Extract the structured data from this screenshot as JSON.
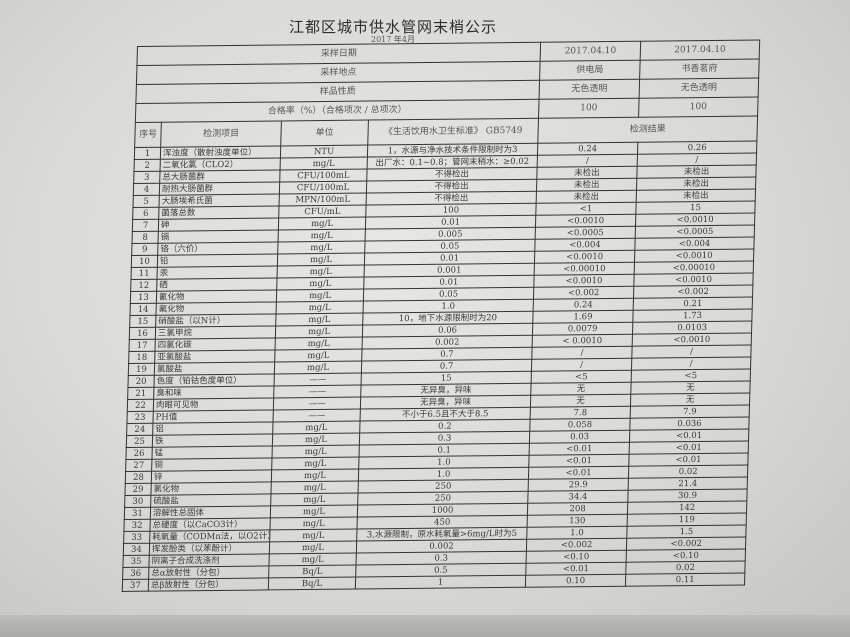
{
  "title": "江都区城市供水管网末梢公示",
  "subtitle": "2017 年4月",
  "summary": [
    {
      "label": "采样日期",
      "v1": "2017.04.10",
      "v2": "2017.04.10"
    },
    {
      "label": "采样地点",
      "v1": "供电局",
      "v2": "书香茗府"
    },
    {
      "label": "样品性质",
      "v1": "无色透明",
      "v2": "无色透明"
    },
    {
      "label": "合格率（%）（合格项次 / 总项次）",
      "v1": "100",
      "v2": "100"
    }
  ],
  "headers": {
    "seq": "序号",
    "item": "检测项目",
    "unit": "单位",
    "standard": "《生活饮用水卫生标准》 GB5749",
    "results": "检测结果"
  },
  "rows": [
    [
      "1",
      "浑浊度（散射浊度单位）",
      "NTU",
      "1，水源与净水技术条件限制时为3",
      "0.24",
      "0.26"
    ],
    [
      "2",
      "二氧化氯（CLO2）",
      "mg/L",
      "出厂水：0.1~0.8；管网末稍水：≥0.02",
      "/",
      "/"
    ],
    [
      "3",
      "总大肠菌群",
      "CFU/100mL",
      "不得检出",
      "未检出",
      "未检出"
    ],
    [
      "4",
      "耐热大肠菌群",
      "CFU/100mL",
      "不得检出",
      "未检出",
      "未检出"
    ],
    [
      "5",
      "大肠埃希氏菌",
      "MPN/100mL",
      "不得检出",
      "未检出",
      "未检出"
    ],
    [
      "6",
      "菌落总数",
      "CFU/mL",
      "100",
      "<1",
      "15"
    ],
    [
      "7",
      "砷",
      "mg/L",
      "0.01",
      "<0.0010",
      "<0.0010"
    ],
    [
      "8",
      "镉",
      "mg/L",
      "0.005",
      "<0.0005",
      "<0.0005"
    ],
    [
      "9",
      "铬（六价）",
      "mg/L",
      "0.05",
      "<0.004",
      "<0.004"
    ],
    [
      "10",
      "铅",
      "mg/L",
      "0.01",
      "<0.0010",
      "<0.0010"
    ],
    [
      "11",
      "汞",
      "mg/L",
      "0.001",
      "<0.00010",
      "<0.00010"
    ],
    [
      "12",
      "硒",
      "mg/L",
      "0.01",
      "<0.0010",
      "<0.0010"
    ],
    [
      "13",
      "氰化物",
      "mg/L",
      "0.05",
      "<0.002",
      "<0.002"
    ],
    [
      "14",
      "氟化物",
      "mg/L",
      "1.0",
      "0.24",
      "0.21"
    ],
    [
      "15",
      "硝酸盐（以N计）",
      "mg/L",
      "10，地下水源限制时为20",
      "1.69",
      "1.73"
    ],
    [
      "16",
      "三氯甲烷",
      "mg/L",
      "0.06",
      "0.0079",
      "0.0103"
    ],
    [
      "17",
      "四氯化碳",
      "mg/L",
      "0.002",
      "< 0.0010",
      "<0.0010"
    ],
    [
      "18",
      "亚氯酸盐",
      "mg/L",
      "0.7",
      "/",
      "/"
    ],
    [
      "19",
      "氯酸盐",
      "mg/L",
      "0.7",
      "/",
      "/"
    ],
    [
      "20",
      "色度（铂钴色度单位）",
      "——",
      "15",
      "<5",
      "<5"
    ],
    [
      "21",
      "臭和味",
      "——",
      "无异臭，异味",
      "无",
      "无"
    ],
    [
      "22",
      "肉眼可见物",
      "——",
      "无异臭，异味",
      "无",
      "无"
    ],
    [
      "23",
      "PH值",
      "——",
      "不小于6.5且不大于8.5",
      "7.8",
      "7.9"
    ],
    [
      "24",
      "铝",
      "mg/L",
      "0.2",
      "0.058",
      "0.036"
    ],
    [
      "25",
      "铁",
      "mg/L",
      "0.3",
      "0.03",
      "<0.01"
    ],
    [
      "26",
      "锰",
      "mg/L",
      "0.1",
      "<0.01",
      "<0.01"
    ],
    [
      "27",
      "铜",
      "mg/L",
      "1.0",
      "<0.01",
      "<0.01"
    ],
    [
      "28",
      "锌",
      "mg/L",
      "1.0",
      "<0.01",
      "0.02"
    ],
    [
      "29",
      "氯化物",
      "mg/L",
      "250",
      "29.9",
      "21.4"
    ],
    [
      "30",
      "硫酸盐",
      "mg/L",
      "250",
      "34.4",
      "30.9"
    ],
    [
      "31",
      "溶解性总固体",
      "mg/L",
      "1000",
      "208",
      "142"
    ],
    [
      "32",
      "总硬度（以CaCO3计）",
      "mg/L",
      "450",
      "130",
      "119"
    ],
    [
      "33",
      "耗氧量（CODMn法，以O2计）",
      "mg/L",
      "3,水源限制，原水耗氧量>6mg/L时为5",
      "1.0",
      "1.5"
    ],
    [
      "34",
      "挥发酚类（以苯酚计）",
      "mg/L",
      "0.002",
      "<0.002",
      "<0.002"
    ],
    [
      "35",
      "阴离子合成洗涤剂",
      "mg/L",
      "0.3",
      "<0.10",
      "<0.10"
    ],
    [
      "36",
      "总α放射性（分包）",
      "Bq/L",
      "0.5",
      "<0.01",
      "0.02"
    ],
    [
      "37",
      "总β放射性（分包）",
      "Bq/L",
      "1",
      "0.10",
      "0.11"
    ]
  ]
}
